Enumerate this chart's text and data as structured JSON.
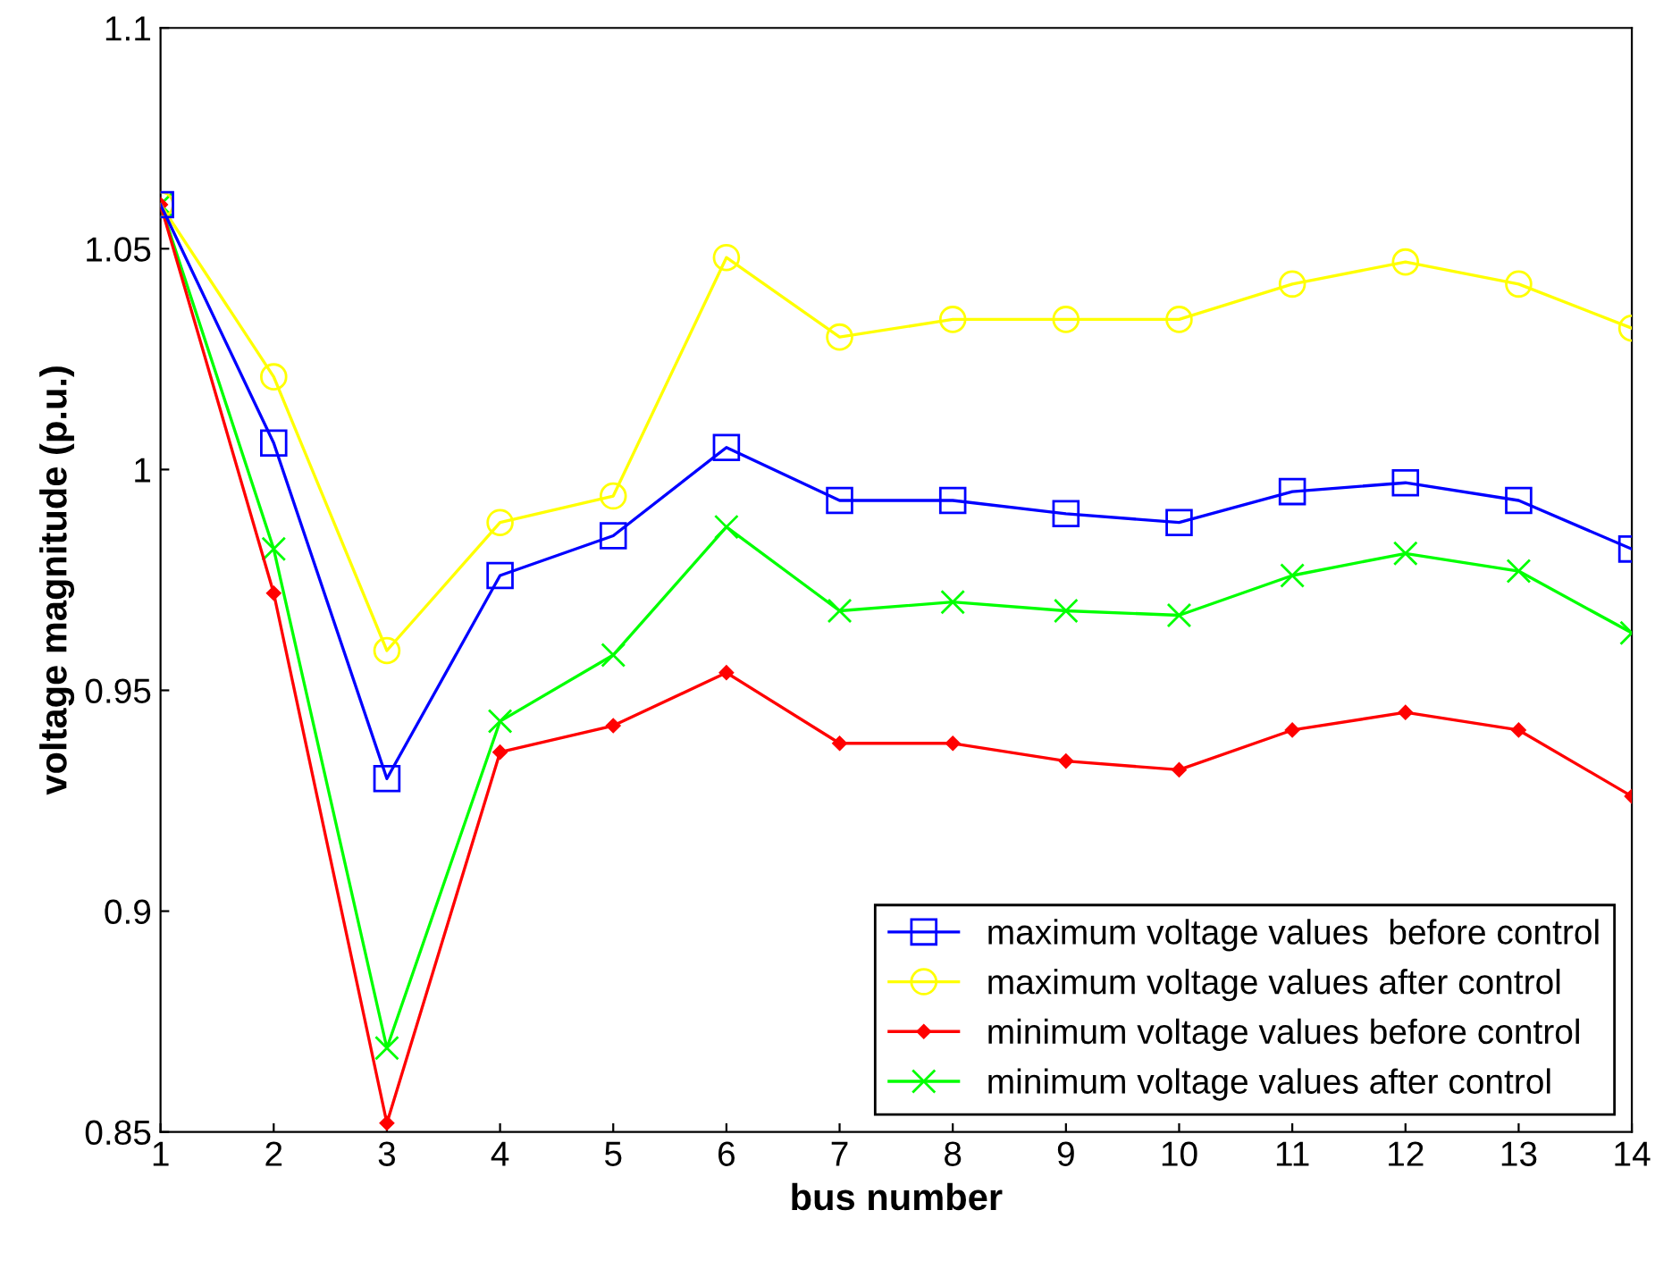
{
  "chart_data": {
    "type": "line",
    "xlabel": "bus number",
    "ylabel": "voltage magnitude (p.u.)",
    "x": [
      1,
      2,
      3,
      4,
      5,
      6,
      7,
      8,
      9,
      10,
      11,
      12,
      13,
      14
    ],
    "series": [
      {
        "name": "maximum voltage values  before control",
        "color": "#0000ff",
        "marker": "square",
        "values": [
          1.06,
          1.006,
          0.93,
          0.976,
          0.985,
          1.005,
          0.993,
          0.993,
          0.99,
          0.988,
          0.995,
          0.997,
          0.993,
          0.982
        ]
      },
      {
        "name": "maximum voltage values after control",
        "color": "#ffff00",
        "marker": "circle",
        "values": [
          1.06,
          1.021,
          0.959,
          0.988,
          0.994,
          1.048,
          1.03,
          1.034,
          1.034,
          1.034,
          1.042,
          1.047,
          1.042,
          1.032
        ]
      },
      {
        "name": "minimum voltage values before control",
        "color": "#ff0000",
        "marker": "diamond",
        "values": [
          1.06,
          0.972,
          0.852,
          0.936,
          0.942,
          0.954,
          0.938,
          0.938,
          0.934,
          0.932,
          0.941,
          0.945,
          0.941,
          0.926
        ]
      },
      {
        "name": "minimum voltage values after control",
        "color": "#00ff00",
        "marker": "cross",
        "values": [
          1.06,
          0.982,
          0.869,
          0.943,
          0.958,
          0.987,
          0.968,
          0.97,
          0.968,
          0.967,
          0.976,
          0.981,
          0.977,
          0.963
        ]
      }
    ],
    "xlim": [
      1,
      14
    ],
    "xticks": [
      1,
      2,
      3,
      4,
      5,
      6,
      7,
      8,
      9,
      10,
      11,
      12,
      13,
      14
    ],
    "ylim": [
      0.85,
      1.1
    ],
    "yticks": [
      0.85,
      0.9,
      0.95,
      1,
      1.05,
      1.1
    ],
    "grid": false,
    "legend": "bottom right",
    "line_style": "solid"
  }
}
